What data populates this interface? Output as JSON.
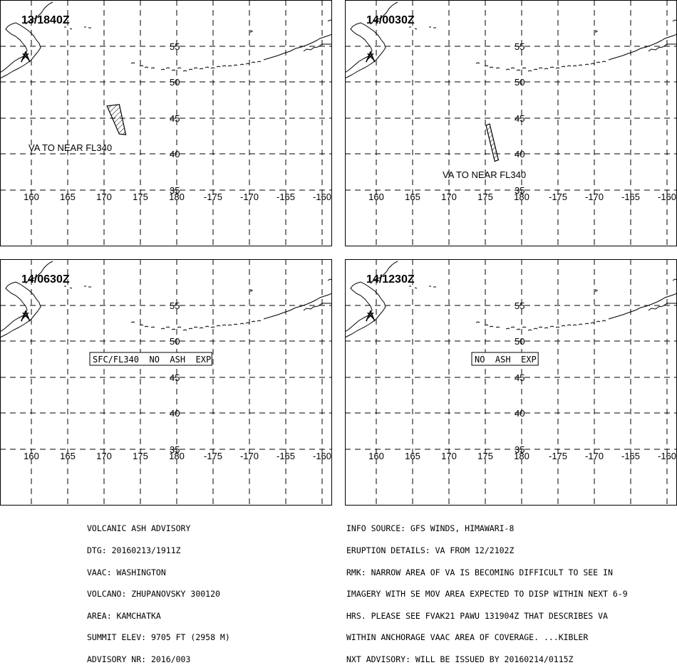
{
  "longitude_labels": [
    "160",
    "165",
    "170",
    "175",
    "180",
    "-175",
    "-170",
    "-165",
    "-160"
  ],
  "latitude_labels": [
    "55",
    "50",
    "45",
    "40",
    "35"
  ],
  "panels": [
    {
      "time_label": "13/1840Z",
      "annotation": "VA TO NEAR FL340",
      "boxed": false,
      "ash_area": "hatched",
      "ash_polygon": [
        [
          170.4,
          46.7
        ],
        [
          172.1,
          46.9
        ],
        [
          173.0,
          42.7
        ],
        [
          172.1,
          42.8
        ]
      ]
    },
    {
      "time_label": "14/0030Z",
      "annotation": "VA TO NEAR FL340",
      "boxed": false,
      "ash_area": "hatched",
      "ash_polygon": [
        [
          175.1,
          44.0
        ],
        [
          175.6,
          44.2
        ],
        [
          176.8,
          39.2
        ],
        [
          176.3,
          39.0
        ]
      ]
    },
    {
      "time_label": "14/0630Z",
      "annotation": "SFC/FL340  NO  ASH  EXP",
      "boxed": true,
      "ash_area": "none",
      "ash_polygon": []
    },
    {
      "time_label": "14/1230Z",
      "annotation": "NO  ASH  EXP",
      "boxed": true,
      "ash_area": "none",
      "ash_polygon": []
    }
  ],
  "advisory_left": [
    "VOLCANIC ASH ADVISORY",
    "DTG: 20160213/1911Z",
    "VAAC: WASHINGTON",
    "VOLCANO: ZHUPANOVSKY 300120",
    "AREA: KAMCHATKA",
    "SUMMIT ELEV: 9705 FT (2958 M)",
    "ADVISORY NR: 2016/003"
  ],
  "advisory_right": [
    "INFO SOURCE: GFS WINDS, HIMAWARI-8",
    "ERUPTION DETAILS: VA FROM 12/2102Z",
    "RMK: NARROW AREA OF VA IS BECOMING DIFFICULT TO SEE IN",
    "IMAGERY WITH SE MOV AREA EXPECTED TO DISP WITHIN NEXT 6-9",
    "HRS. PLEASE SEE FVAK21 PAWU 131904Z THAT DESCRIBES VA",
    "WITHIN ANCHORAGE VAAC AREA OF COVERAGE. ...KIBLER",
    "NXT ADVISORY: WILL BE ISSUED BY 20160214/0115Z"
  ],
  "volcano_symbol": {
    "name": "volcano-icon",
    "lon": 159.2,
    "lat": 53.6
  }
}
